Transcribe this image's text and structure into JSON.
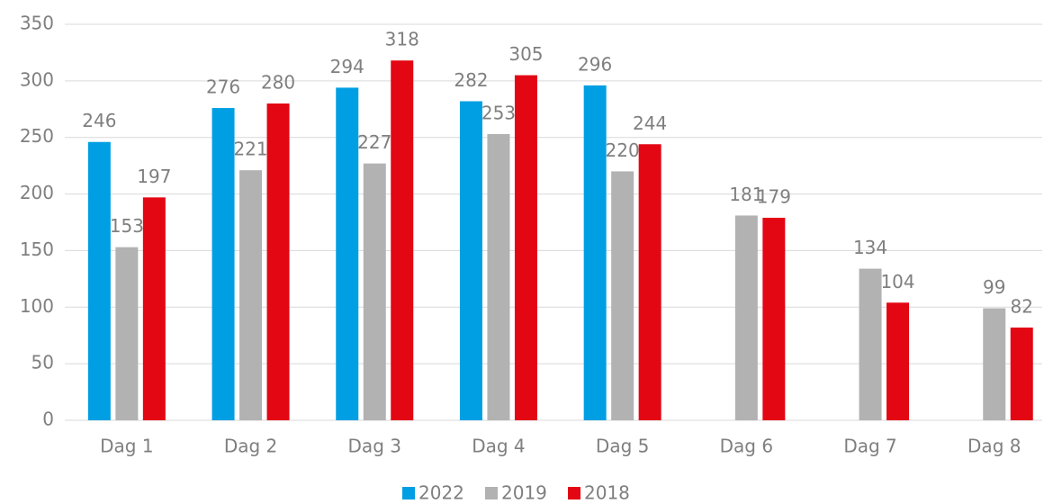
{
  "chart_data": {
    "type": "bar",
    "categories": [
      "Dag 1",
      "Dag 2",
      "Dag 3",
      "Dag 4",
      "Dag 5",
      "Dag 6",
      "Dag 7",
      "Dag 8"
    ],
    "series": [
      {
        "name": "2022",
        "color": "#009fe3",
        "values": [
          246,
          276,
          294,
          282,
          296,
          null,
          null,
          null
        ]
      },
      {
        "name": "2019",
        "color": "#b2b2b2",
        "values": [
          153,
          221,
          227,
          253,
          220,
          181,
          134,
          99
        ]
      },
      {
        "name": "2018",
        "color": "#e30613",
        "values": [
          197,
          280,
          318,
          305,
          244,
          179,
          104,
          82
        ]
      }
    ],
    "ylim": [
      0,
      350
    ],
    "yticks": [
      0,
      50,
      100,
      150,
      200,
      250,
      300,
      350
    ],
    "grid": true,
    "legend": "bottom"
  }
}
